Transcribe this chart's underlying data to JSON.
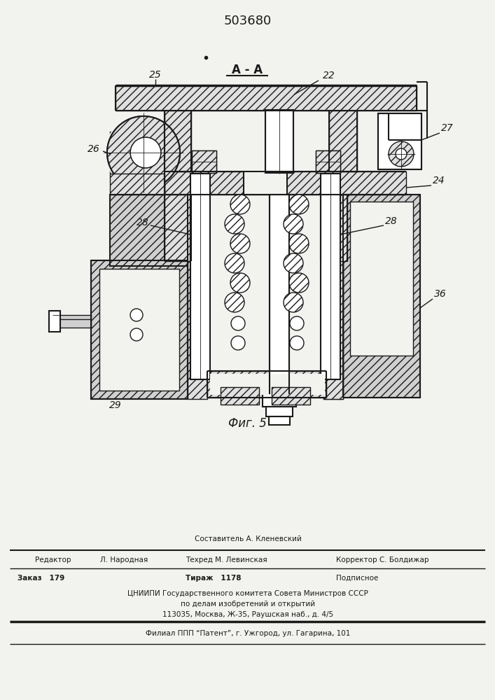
{
  "title": "503680",
  "fig_label": "Фиг. 5",
  "section_label": "А - А",
  "bg_color": "#f2f2ee",
  "line_color": "#1a1a1a",
  "bottom_texts": {
    "составитель": "Составитель А. Кленевский",
    "редактор": "Редактор",
    "редактор_val": "Л. Народная",
    "техред": "Техред М. Левинская",
    "корректор": "Корректор С. Болдижар",
    "заказ": "Заказ   179",
    "тираж": "Тираж   1178",
    "подписное": "Подписное",
    "цниипи": "ЦНИИПИ Государственного комитета Совета Министров СССР",
    "по_делам": "по делам изобретений и открытий",
    "адрес": "113035, Москва, Ж-35, Раушская наб., д. 4/5",
    "филиал": "Филиал ППП “Патент”, г. Ужгород, ул. Гагарина, 101"
  }
}
